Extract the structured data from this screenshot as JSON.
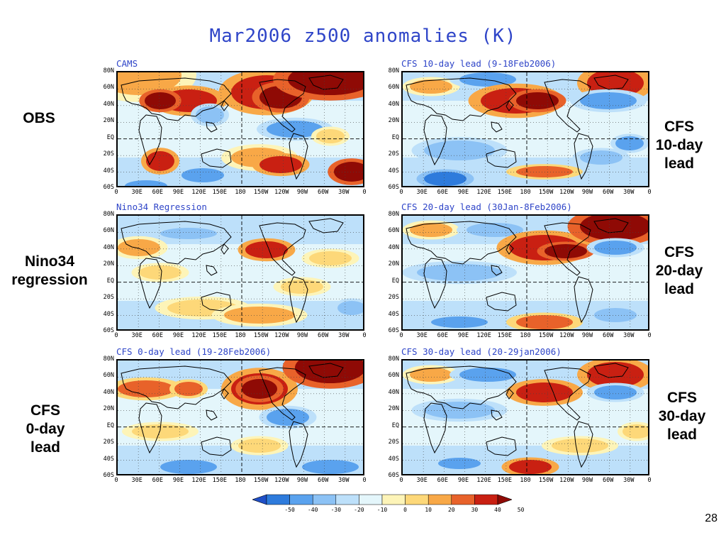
{
  "title": "Mar2006  z500 anomalies (K)",
  "row_labels": {
    "obs": [
      "OBS"
    ],
    "nino": [
      "Nino34",
      "regression"
    ],
    "cfs0": [
      "CFS",
      "0-day",
      "lead"
    ]
  },
  "right_labels": {
    "cfs10": [
      "CFS",
      "10-day",
      "lead"
    ],
    "cfs20": [
      "CFS",
      "20-day",
      "lead"
    ],
    "cfs30": [
      "CFS",
      "30-day",
      "lead"
    ]
  },
  "panels": [
    {
      "id": "cams",
      "title": "CAMS"
    },
    {
      "id": "cfs10",
      "title": "CFS 10-day lead (9-18Feb2006)"
    },
    {
      "id": "nino",
      "title": "Nino34 Regression"
    },
    {
      "id": "cfs20",
      "title": "CFS 20-day lead (30Jan-8Feb2006)"
    },
    {
      "id": "cfs0",
      "title": "CFS 0-day lead (19-28Feb2006)"
    },
    {
      "id": "cfs30",
      "title": "CFS 30-day lead (20-29jan2006)"
    }
  ],
  "lat_labels": [
    "80N",
    "60N",
    "40N",
    "20N",
    "EQ",
    "20S",
    "40S",
    "60S"
  ],
  "lon_labels": [
    "0",
    "30E",
    "60E",
    "90E",
    "120E",
    "150E",
    "180",
    "150W",
    "120W",
    "90W",
    "60W",
    "30W",
    "0"
  ],
  "colorbar": {
    "labels": [
      "-50",
      "-40",
      "-30",
      "-20",
      "-10",
      "0",
      "10",
      "20",
      "30",
      "40",
      "50"
    ],
    "colors": [
      "#1f4fc7",
      "#2e7bdc",
      "#5aa2ee",
      "#8cc2f5",
      "#bde0fa",
      "#e4f6fb",
      "#fdf4b8",
      "#fdd879",
      "#f8a847",
      "#e8622a",
      "#c92012",
      "#8f0a05"
    ]
  },
  "page_number": "28"
}
